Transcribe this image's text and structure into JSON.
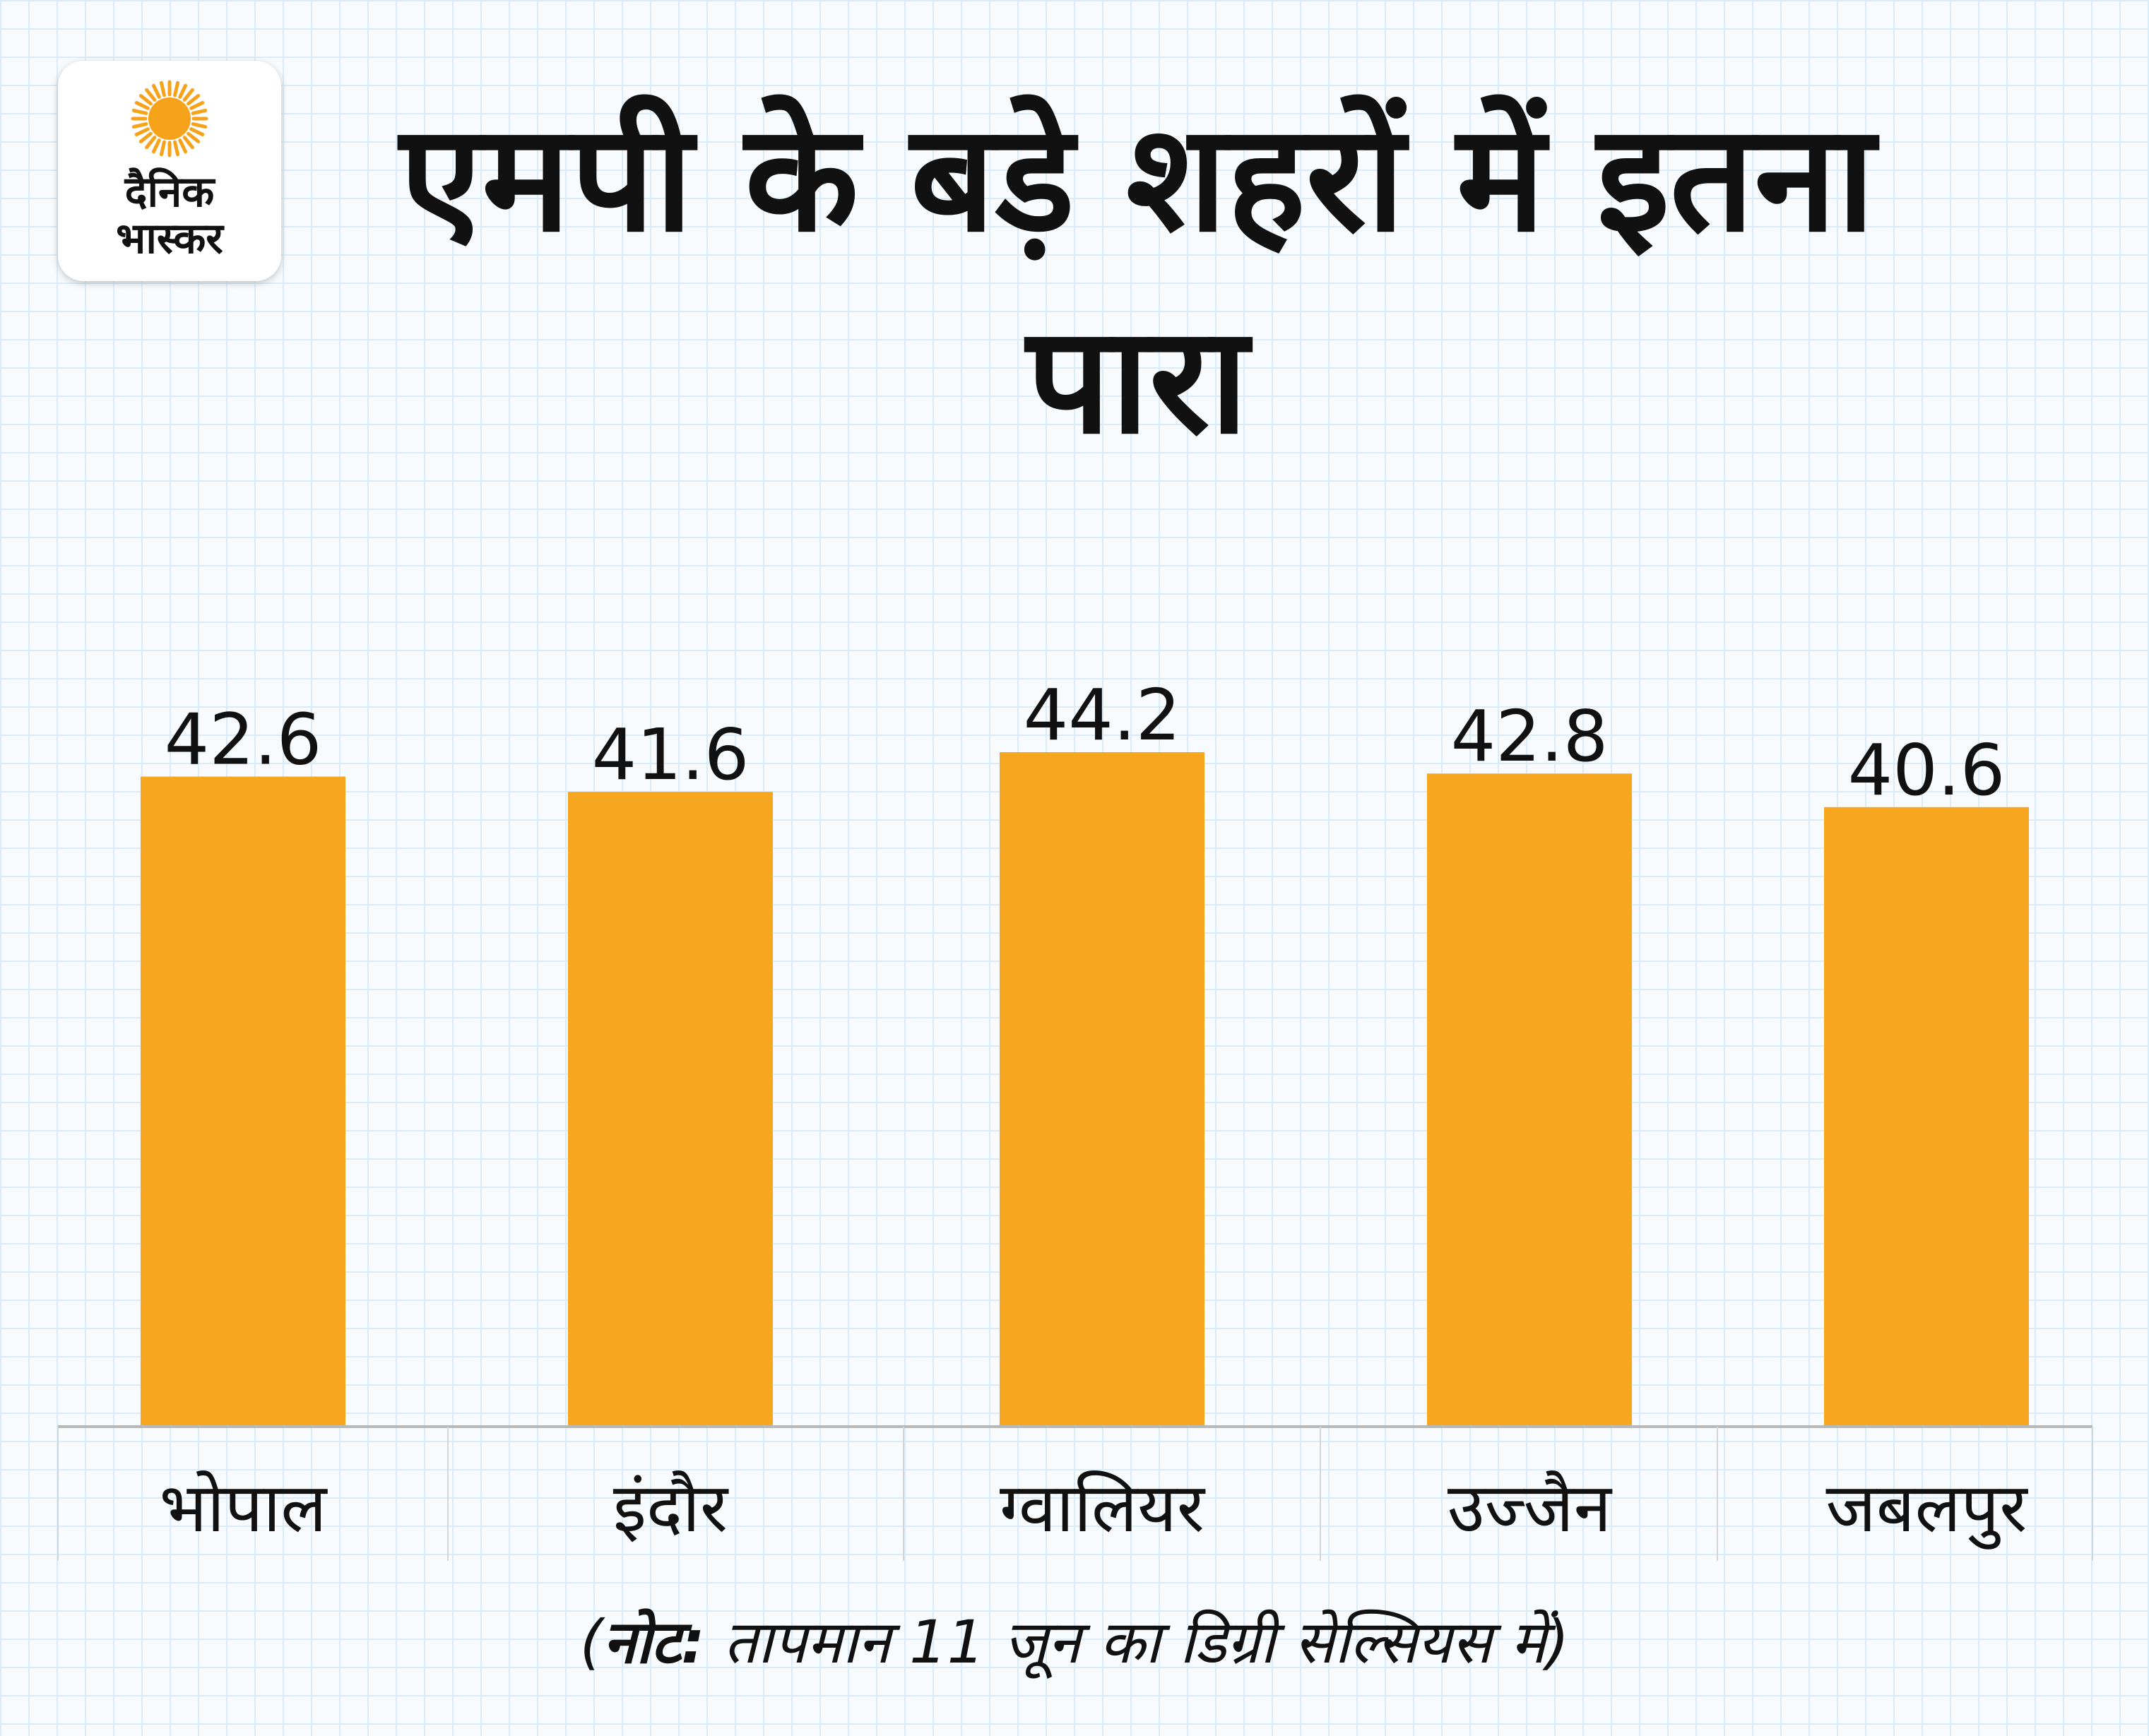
{
  "logo": {
    "line1": "दैनिक",
    "line2": "भास्कर",
    "sun_color": "#f7a21b"
  },
  "title": "एमपी के बड़े शहरों में इतना पारा",
  "note": {
    "open": "(",
    "label": "नोट:",
    "text": " तापमान 11 जून का डिग्री सेल्सियस में)"
  },
  "colors": {
    "bar": "#f7a620",
    "axis": "#b8b8b8",
    "text": "#111111",
    "grid": "#dcecf6"
  },
  "chart_data": {
    "type": "bar",
    "categories": [
      "भोपाल",
      "इंदौर",
      "ग्वालियर",
      "उज्जैन",
      "जबलपुर"
    ],
    "values": [
      42.6,
      41.6,
      44.2,
      42.8,
      40.6
    ],
    "value_labels": [
      "42.6",
      "41.6",
      "44.2",
      "42.8",
      "40.6"
    ],
    "title": "एमपी के बड़े शहरों में इतना पारा",
    "xlabel": "",
    "ylabel": "",
    "ylim": [
      0,
      44.2
    ],
    "grid": true,
    "legend": "none"
  }
}
